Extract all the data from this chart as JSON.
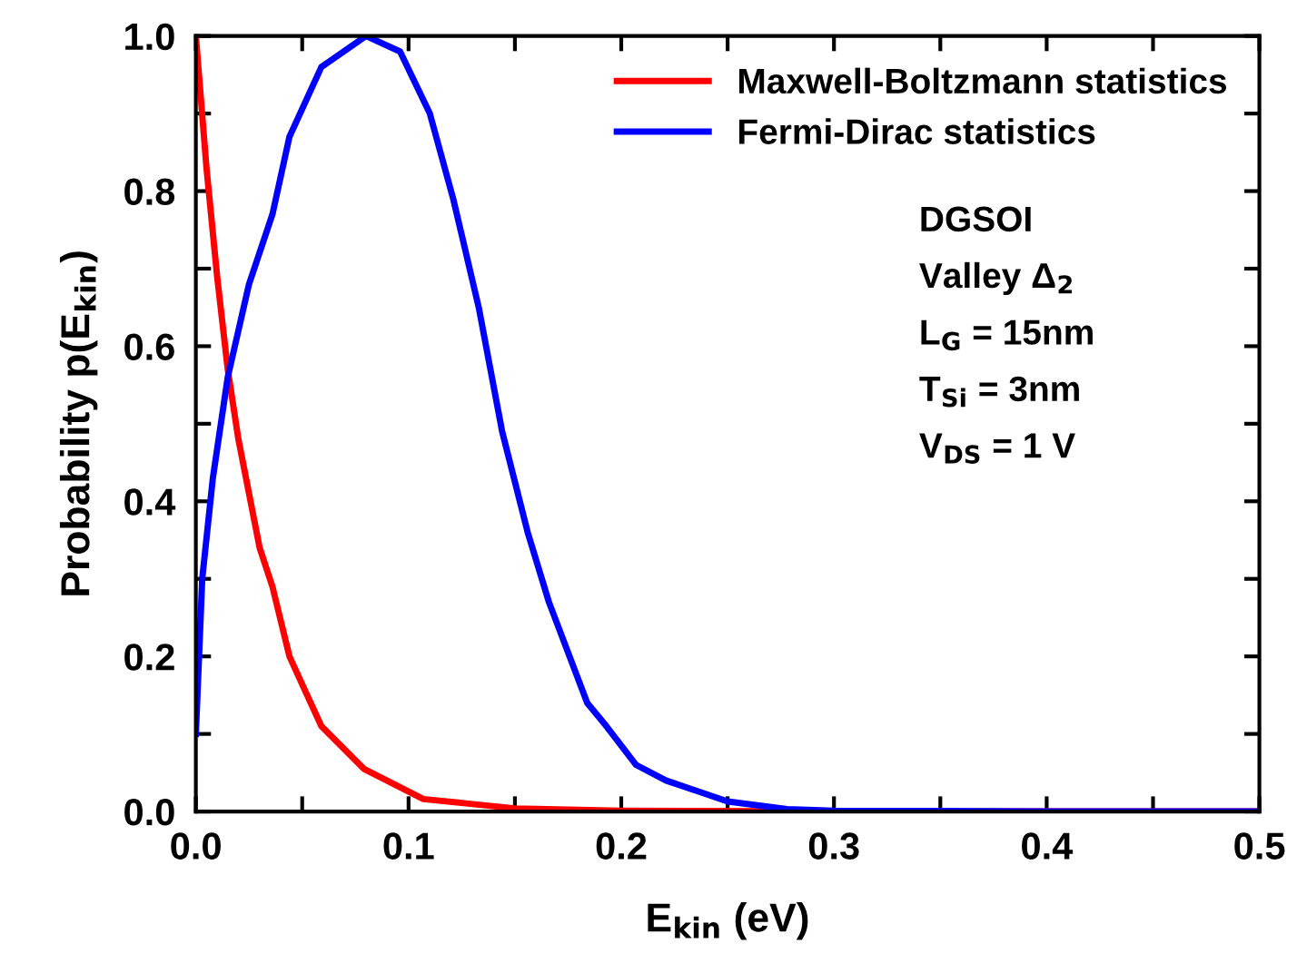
{
  "chart_data": {
    "type": "line",
    "xlabel": "E$_{kin}$ (eV)",
    "ylabel": "Probability p(E$_{kin}$)",
    "xlim": [
      0,
      0.5
    ],
    "ylim": [
      0,
      1.0
    ],
    "xticks": [
      {
        "value": 0,
        "label": "0.0"
      },
      {
        "value": 0.05,
        "label": null
      },
      0.1,
      {
        "value": 0.15,
        "label": null
      },
      0.2,
      {
        "value": 0.25,
        "label": null
      },
      0.3,
      {
        "value": 0.35,
        "label": null
      },
      0.4,
      {
        "value": 0.45,
        "label": null
      },
      0.5
    ],
    "yticks": [
      {
        "value": 0,
        "label": "0.0"
      },
      {
        "value": 0.1,
        "label": null
      },
      0.2,
      {
        "value": 0.3,
        "label": null
      },
      0.4,
      {
        "value": 0.5,
        "label": null
      },
      0.6,
      {
        "value": 0.7,
        "label": null
      },
      0.8,
      {
        "value": 0.9,
        "label": null
      },
      {
        "value": 1,
        "label": "1.0"
      }
    ],
    "grid": false,
    "legend": "top right",
    "marker": "none",
    "line_style": "solid",
    "series": [
      {
        "name": "Maxwell-Boltzmann statistics",
        "color": "#ff0000",
        "x": [
          0,
          0.005,
          0.01,
          0.015,
          0.02,
          0.03,
          0.036,
          0.044,
          0.059,
          0.079,
          0.107,
          0.15,
          0.2,
          0.3,
          0.4,
          0.5
        ],
        "values": [
          1.0,
          0.83,
          0.69,
          0.57,
          0.48,
          0.34,
          0.29,
          0.2,
          0.11,
          0.055,
          0.016,
          0.004,
          0.001,
          0,
          0,
          0
        ]
      },
      {
        "name": "Fermi-Dirac statistics",
        "color": "#0000ff",
        "x": [
          0,
          0.003,
          0.008,
          0.015,
          0.025,
          0.036,
          0.044,
          0.059,
          0.08,
          0.096,
          0.11,
          0.121,
          0.133,
          0.144,
          0.156,
          0.166,
          0.184,
          0.193,
          0.207,
          0.221,
          0.25,
          0.278,
          0.3,
          0.4,
          0.5
        ],
        "values": [
          0.1,
          0.3,
          0.43,
          0.56,
          0.68,
          0.77,
          0.87,
          0.96,
          1.0,
          0.98,
          0.9,
          0.79,
          0.65,
          0.49,
          0.36,
          0.27,
          0.14,
          0.11,
          0.06,
          0.04,
          0.013,
          0.003,
          0.001,
          0,
          0
        ]
      }
    ],
    "annotations": [
      "DGSOI",
      "Valley Δ$_{2}$",
      "L$_{G}$ = 15nm",
      "T$_{Si}$ = 3nm",
      "V$_{DS}$ = 1 V"
    ]
  }
}
